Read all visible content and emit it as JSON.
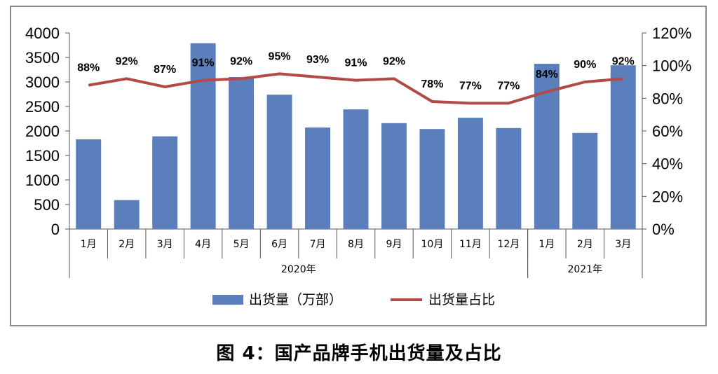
{
  "caption": "图 4：国产品牌手机出货量及占比",
  "chart_data": {
    "type": "bar",
    "categories": [
      "1月",
      "2月",
      "3月",
      "4月",
      "5月",
      "6月",
      "7月",
      "8月",
      "9月",
      "10月",
      "11月",
      "12月",
      "1月",
      "2月",
      "3月"
    ],
    "year_groups": [
      {
        "label": "2020年",
        "start": 0,
        "end": 11
      },
      {
        "label": "2021年",
        "start": 12,
        "end": 14
      }
    ],
    "series": [
      {
        "name": "出货量（万部）",
        "type": "bar",
        "axis": "left",
        "color": "#5b7fbd",
        "values": [
          1830,
          590,
          1890,
          3790,
          3100,
          2740,
          2070,
          2440,
          2160,
          2040,
          2270,
          2060,
          3370,
          1960,
          3340
        ]
      },
      {
        "name": "出货量占比",
        "type": "line",
        "axis": "right",
        "color": "#b24a46",
        "values": [
          88,
          92,
          87,
          91,
          92,
          95,
          93,
          91,
          92,
          78,
          77,
          77,
          84,
          90,
          92
        ],
        "labels": [
          "88%",
          "92%",
          "87%",
          "91%",
          "92%",
          "95%",
          "93%",
          "91%",
          "92%",
          "78%",
          "77%",
          "77%",
          "84%",
          "90%",
          "92%"
        ]
      }
    ],
    "y_left": {
      "min": 0,
      "max": 4000,
      "ticks": [
        "0",
        "500",
        "1000",
        "1500",
        "2000",
        "2500",
        "3000",
        "3500",
        "4000"
      ]
    },
    "y_right": {
      "min": 0,
      "max": 120,
      "ticks": [
        "0%",
        "20%",
        "40%",
        "60%",
        "80%",
        "100%",
        "120%"
      ]
    },
    "legend_position": "bottom",
    "grid": false
  }
}
